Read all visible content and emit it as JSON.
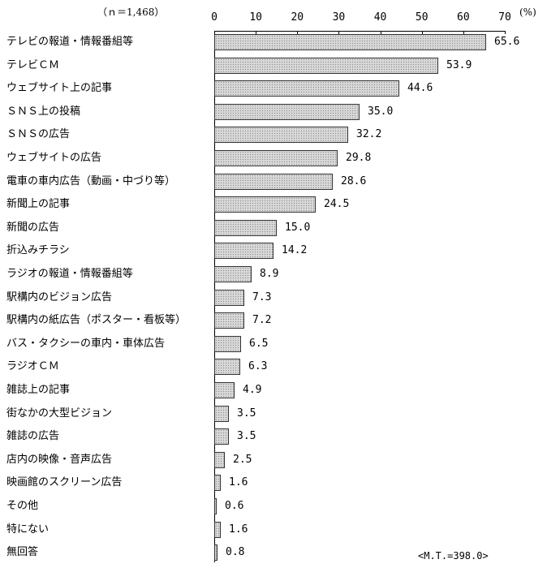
{
  "header": {
    "sample_size": "（ｎ＝1,468）",
    "unit": "(%)",
    "multiple_total": "<M.T.=398.0>"
  },
  "chart_data": {
    "type": "bar",
    "orientation": "horizontal",
    "title": "",
    "sample_size": "n=1,468",
    "xlabel": "(%)",
    "ylabel": "",
    "xlim": [
      0,
      70
    ],
    "x_ticks": [
      0,
      10,
      20,
      30,
      40,
      50,
      60,
      70
    ],
    "grid": false,
    "legend": null,
    "annotation": "<M.T.=398.0>",
    "categories": [
      "テレビの報道・情報番組等",
      "テレビＣＭ",
      "ウェブサイト上の記事",
      "ＳＮＳ上の投稿",
      "ＳＮＳの広告",
      "ウェブサイトの広告",
      "電車の車内広告（動画・中づり等）",
      "新聞上の記事",
      "新聞の広告",
      "折込みチラシ",
      "ラジオの報道・情報番組等",
      "駅構内のビジョン広告",
      "駅構内の紙広告（ポスター・看板等）",
      "バス・タクシーの車内・車体広告",
      "ラジオＣＭ",
      "雑誌上の記事",
      "街なかの大型ビジョン",
      "雑誌の広告",
      "店内の映像・音声広告",
      "映画館のスクリーン広告",
      "その他",
      "特にない",
      "無回答"
    ],
    "values": [
      65.6,
      53.9,
      44.6,
      35.0,
      32.2,
      29.8,
      28.6,
      24.5,
      15.0,
      14.2,
      8.9,
      7.3,
      7.2,
      6.5,
      6.3,
      4.9,
      3.5,
      3.5,
      2.5,
      1.6,
      0.6,
      1.6,
      0.8
    ],
    "value_labels": [
      "65.6",
      "53.9",
      "44.6",
      "35.0",
      "32.2",
      "29.8",
      "28.6",
      "24.5",
      "15.0",
      "14.2",
      "8.9",
      "7.3",
      "7.2",
      "6.5",
      "6.3",
      "4.9",
      "3.5",
      "3.5",
      "2.5",
      "1.6",
      "0.6",
      "1.6",
      "0.8"
    ]
  }
}
